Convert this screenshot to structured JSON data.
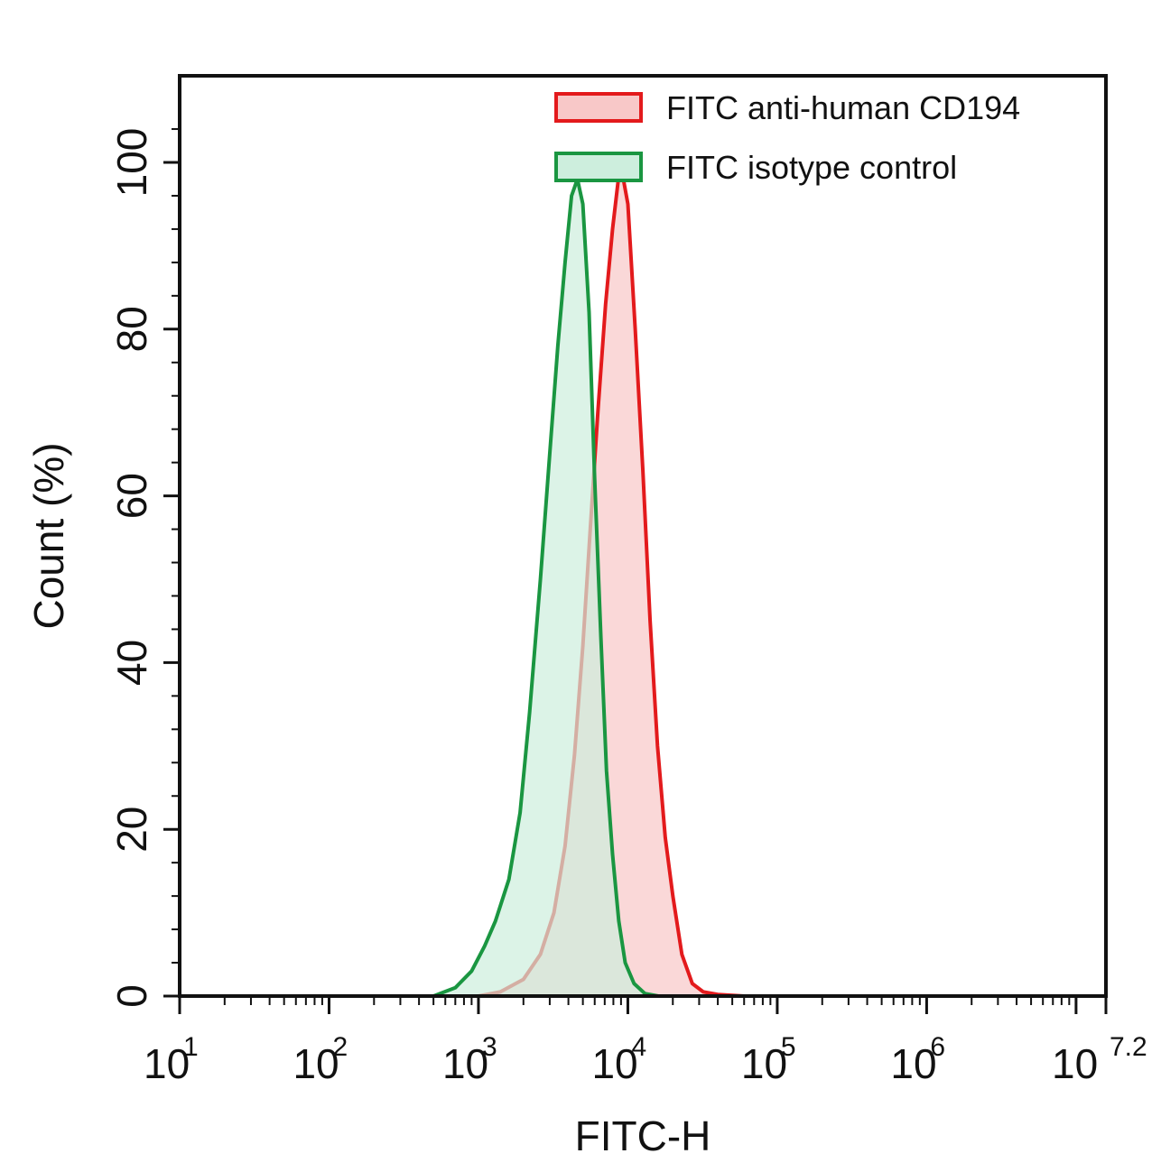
{
  "chart_data": {
    "type": "area",
    "xlabel": "FITC-H",
    "ylabel": "Count (%)",
    "x_scale": "log10",
    "xlim": [
      10,
      15848932
    ],
    "ylim": [
      0,
      100
    ],
    "x_ticks": [
      {
        "base": "10",
        "exp": "1",
        "value": 10
      },
      {
        "base": "10",
        "exp": "2",
        "value": 100
      },
      {
        "base": "10",
        "exp": "3",
        "value": 1000
      },
      {
        "base": "10",
        "exp": "4",
        "value": 10000
      },
      {
        "base": "10",
        "exp": "5",
        "value": 100000
      },
      {
        "base": "10",
        "exp": "6",
        "value": 1000000
      },
      {
        "base": "10",
        "exp": "7.2",
        "value": 15848932
      }
    ],
    "y_ticks": [
      "0",
      "20",
      "40",
      "60",
      "80",
      "100"
    ],
    "legend_position": "top-right",
    "grid": false,
    "series": [
      {
        "name": "FITC anti-human CD194",
        "color": "#e31a1c",
        "fill": "#f8c8c8",
        "x": [
          1000,
          1400,
          2000,
          2600,
          3200,
          3800,
          4400,
          5000,
          5600,
          6300,
          7100,
          7900,
          8900,
          10000,
          11200,
          12600,
          14100,
          15800,
          17800,
          20000,
          23000,
          27000,
          32000,
          40000,
          60000
        ],
        "y": [
          0,
          0.5,
          2,
          5,
          10,
          18,
          29,
          42,
          56,
          70,
          83,
          92,
          100,
          95,
          80,
          63,
          45,
          30,
          19,
          12,
          5,
          1.5,
          0.5,
          0.2,
          0
        ]
      },
      {
        "name": "FITC isotype control",
        "color": "#1a9641",
        "fill": "#cdeedd",
        "x": [
          500,
          700,
          900,
          1100,
          1300,
          1600,
          1900,
          2200,
          2600,
          3000,
          3400,
          3800,
          4200,
          4600,
          5000,
          5500,
          6000,
          6600,
          7200,
          7900,
          8700,
          9600,
          11000,
          13000,
          16000
        ],
        "y": [
          0,
          1,
          3,
          6,
          9,
          14,
          22,
          34,
          50,
          65,
          78,
          88,
          96,
          98,
          95,
          82,
          62,
          43,
          27,
          17,
          9,
          4,
          1.5,
          0.3,
          0
        ]
      }
    ]
  }
}
